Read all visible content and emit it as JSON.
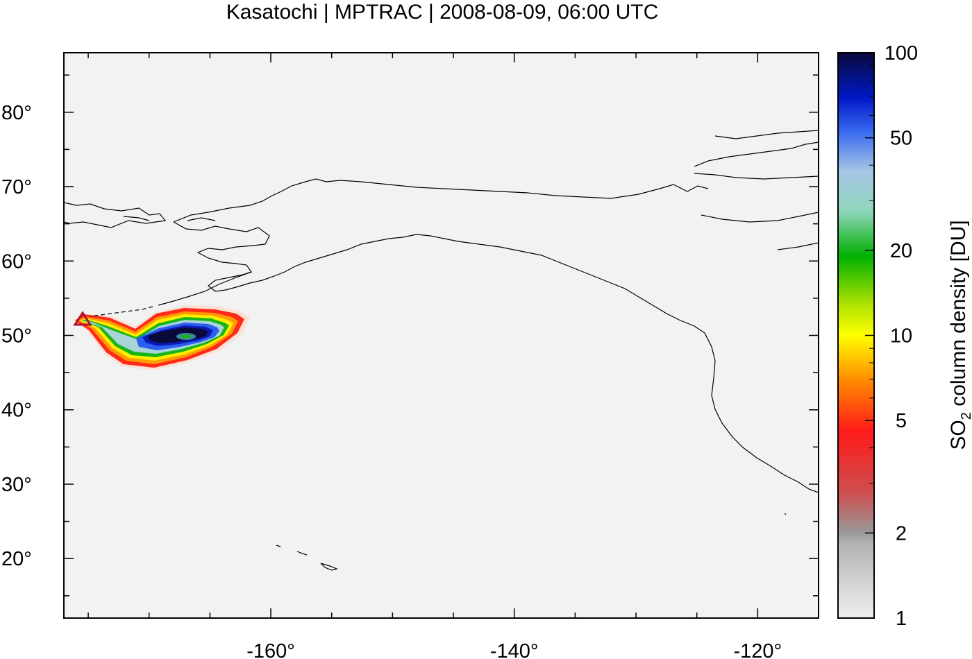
{
  "title": "Kasatochi | MPTRAC | 2008-08-09, 06:00 UTC",
  "map": {
    "lon_range": [
      -177,
      -115
    ],
    "lat_range": [
      12,
      88
    ],
    "x_ticks": [
      {
        "value": -160,
        "label": "-160°"
      },
      {
        "value": -140,
        "label": "-140°"
      },
      {
        "value": -120,
        "label": "-120°"
      }
    ],
    "y_ticks": [
      {
        "value": 20,
        "label": "20°"
      },
      {
        "value": 30,
        "label": "30°"
      },
      {
        "value": 40,
        "label": "40°"
      },
      {
        "value": 50,
        "label": "50°"
      },
      {
        "value": 60,
        "label": "60°"
      },
      {
        "value": 70,
        "label": "70°"
      },
      {
        "value": 80,
        "label": "80°"
      }
    ],
    "volcano_marker": {
      "lon": -175.5,
      "lat": 52.2,
      "icon": "triangle-marker-icon",
      "color": "#b0102a"
    },
    "plume": {
      "center_lon": -167,
      "center_lat": 50
    }
  },
  "colorbar": {
    "label_prefix": "SO",
    "label_sub": "2",
    "label_suffix": " column density [DU]",
    "scale": "log",
    "range": [
      1,
      100
    ],
    "ticks": [
      {
        "value": 1,
        "label": "1"
      },
      {
        "value": 2,
        "label": "2"
      },
      {
        "value": 5,
        "label": "5"
      },
      {
        "value": 10,
        "label": "10"
      },
      {
        "value": 20,
        "label": "20"
      },
      {
        "value": 50,
        "label": "50"
      },
      {
        "value": 100,
        "label": "100"
      }
    ],
    "colors": [
      "#efefef",
      "#9a9a9a",
      "#d04040",
      "#ff2020",
      "#ff8c00",
      "#ffff00",
      "#a0e000",
      "#00b000",
      "#90d8c0",
      "#a8c8e8",
      "#2050f0",
      "#0010a0",
      "#0a0a3a"
    ]
  }
}
